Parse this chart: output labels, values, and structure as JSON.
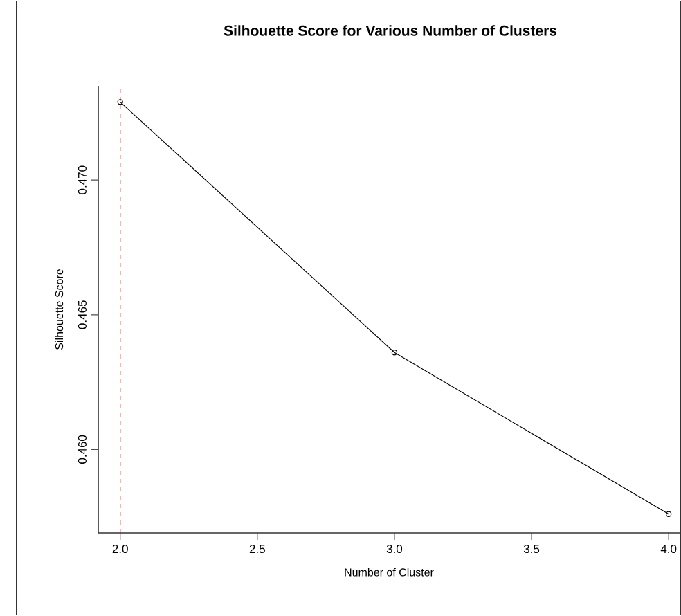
{
  "chart_data": {
    "type": "line",
    "title": "Silhouette Score for Various Number of Clusters",
    "xlabel": "Number of Cluster",
    "ylabel": "Silhouette Score",
    "x": [
      2,
      3,
      4
    ],
    "series": [
      {
        "color": "#000000",
        "values": [
          0.4729,
          0.4636,
          0.4576
        ]
      }
    ],
    "xlim": [
      1.92,
      4.04
    ],
    "ylim": [
      0.4569,
      0.4735
    ],
    "xticks": [
      {
        "value": 2,
        "label": "2.0"
      },
      2.5,
      {
        "value": 3,
        "label": "3.0"
      },
      3.5,
      {
        "value": 4,
        "label": "4.0"
      }
    ],
    "yticks": [
      {
        "value": 0.46,
        "label": "0.460"
      },
      0.465,
      {
        "value": 0.47,
        "label": "0.470"
      }
    ],
    "ref_lines": [
      {
        "axis": "x",
        "value": 2,
        "color": "#ff0000",
        "line_style": "dashed"
      }
    ],
    "marker": "circle",
    "line_style": "solid"
  }
}
